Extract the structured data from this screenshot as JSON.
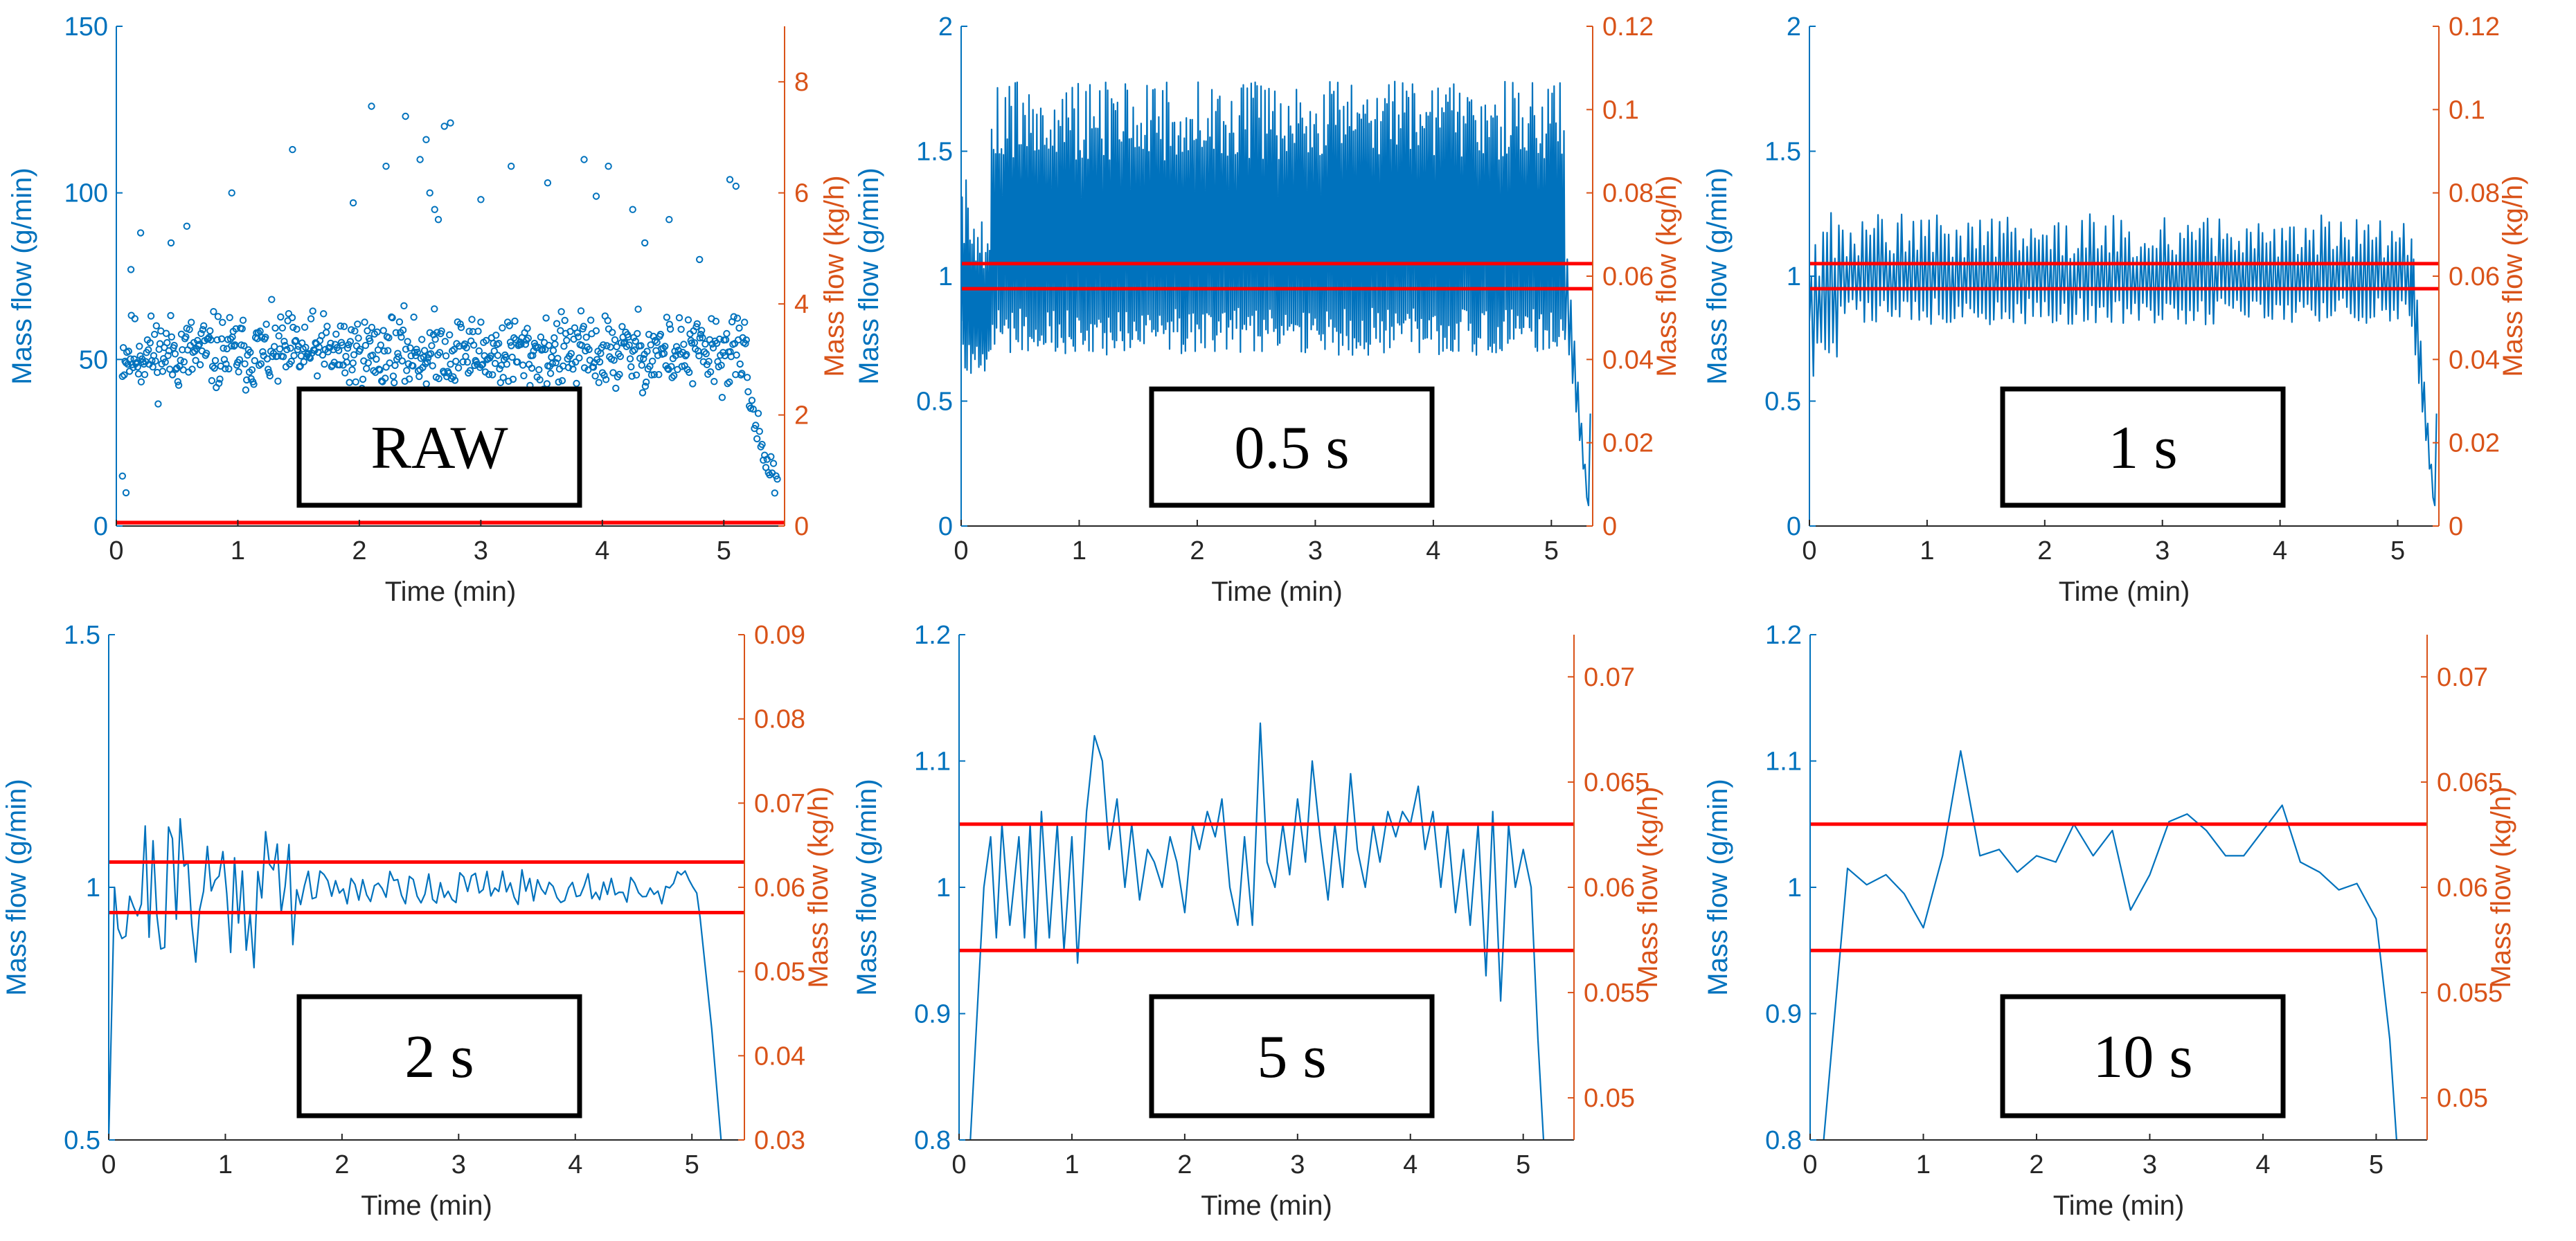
{
  "colors": {
    "left_axis": "#0072BD",
    "right_axis": "#D95319",
    "band": "#FF0000",
    "data": "#0072BD",
    "box": "#000000"
  },
  "chart_data": [
    {
      "type": "scatter",
      "panel_label": "RAW",
      "xlabel": "Time (min)",
      "ylabel_left": "Mass flow (g/min)",
      "ylabel_right": "Mass flow (kg/h)",
      "xlim": [
        0,
        5.5
      ],
      "xticks": [
        0,
        1,
        2,
        3,
        4,
        5
      ],
      "ylim_left": [
        0,
        150
      ],
      "yticks_left": [
        0,
        50,
        100,
        150
      ],
      "ylim_right": [
        0,
        9
      ],
      "yticks_right": [
        0,
        2,
        4,
        6,
        8
      ],
      "band_lines": [
        0.95,
        1.05
      ],
      "series": {
        "generator": {
          "kind": "scatter",
          "mean": 52,
          "spread": 8,
          "n": 700,
          "end_drop": 5.2,
          "seed": 11
        },
        "outliers": [
          [
            0.12,
            77
          ],
          [
            0.2,
            88
          ],
          [
            0.45,
            85
          ],
          [
            0.58,
            90
          ],
          [
            0.95,
            100
          ],
          [
            1.45,
            113
          ],
          [
            1.95,
            97
          ],
          [
            2.1,
            126
          ],
          [
            2.22,
            108
          ],
          [
            2.38,
            123
          ],
          [
            2.5,
            110
          ],
          [
            2.55,
            116
          ],
          [
            2.58,
            100
          ],
          [
            2.62,
            95
          ],
          [
            2.65,
            92
          ],
          [
            2.7,
            120
          ],
          [
            2.75,
            121
          ],
          [
            3.0,
            98
          ],
          [
            3.25,
            108
          ],
          [
            3.55,
            103
          ],
          [
            3.85,
            110
          ],
          [
            3.95,
            99
          ],
          [
            4.05,
            108
          ],
          [
            4.25,
            95
          ],
          [
            4.35,
            85
          ],
          [
            4.55,
            92
          ],
          [
            4.8,
            80
          ],
          [
            5.05,
            104
          ],
          [
            5.1,
            102
          ],
          [
            0.05,
            15
          ],
          [
            0.08,
            10
          ]
        ]
      }
    },
    {
      "type": "line",
      "panel_label": "0.5 s",
      "xlabel": "Time (min)",
      "ylabel_left": "Mass flow (g/min)",
      "ylabel_right": "Mass flow (kg/h)",
      "xlim": [
        0,
        5.35
      ],
      "xticks": [
        0,
        1,
        2,
        3,
        4,
        5
      ],
      "ylim_left": [
        0,
        2
      ],
      "yticks_left": [
        0,
        0.5,
        1,
        1.5,
        2
      ],
      "ylim_right": [
        0,
        0.12
      ],
      "yticks_right": [
        0,
        0.02,
        0.04,
        0.06,
        0.08,
        0.1,
        0.12
      ],
      "band_lines": [
        0.95,
        1.05
      ],
      "series": {
        "generator": {
          "kind": "alternating",
          "step": 0.00833,
          "low": 0.78,
          "high": 1.62,
          "jitter": 0.16,
          "end_drop": 5.12,
          "seed": 5
        }
      }
    },
    {
      "type": "line",
      "panel_label": "1 s",
      "xlabel": "Time (min)",
      "ylabel_left": "Mass flow (g/min)",
      "ylabel_right": "Mass flow (kg/h)",
      "xlim": [
        0,
        5.35
      ],
      "xticks": [
        0,
        1,
        2,
        3,
        4,
        5
      ],
      "ylim_left": [
        0,
        2
      ],
      "yticks_left": [
        0,
        0.5,
        1,
        1.5,
        2
      ],
      "ylim_right": [
        0,
        0.12
      ],
      "yticks_right": [
        0,
        0.02,
        0.04,
        0.06,
        0.08,
        0.1,
        0.12
      ],
      "band_lines": [
        0.95,
        1.05
      ],
      "series": {
        "generator": {
          "kind": "alternating",
          "step": 0.01667,
          "low": 0.86,
          "high": 1.16,
          "jitter": 0.09,
          "end_drop": 5.12,
          "seed": 9
        }
      }
    },
    {
      "type": "line",
      "panel_label": "2 s",
      "xlabel": "Time (min)",
      "ylabel_left": "Mass flow (g/min)",
      "ylabel_right": "Mass flow (kg/h)",
      "xlim": [
        0,
        5.45
      ],
      "xticks": [
        0,
        1,
        2,
        3,
        4,
        5
      ],
      "ylim_left": [
        0.5,
        1.5
      ],
      "yticks_left": [
        0.5,
        1,
        1.5
      ],
      "ylim_right": [
        0.03,
        0.09
      ],
      "yticks_right": [
        0.03,
        0.04,
        0.05,
        0.06,
        0.07,
        0.08,
        0.09
      ],
      "band_lines": [
        0.95,
        1.05
      ],
      "series": {
        "generator": {
          "kind": "random",
          "step": 0.0333,
          "mean": 1.0,
          "amp_early": 0.16,
          "amp_late": 0.035,
          "transition": 1.6,
          "end_drop": 5.05,
          "seed": 21
        }
      }
    },
    {
      "type": "line",
      "panel_label": "5 s",
      "xlabel": "Time (min)",
      "ylabel_left": "Mass flow (g/min)",
      "ylabel_right": "Mass flow (kg/h)",
      "xlim": [
        0,
        5.45
      ],
      "xticks": [
        0,
        1,
        2,
        3,
        4,
        5
      ],
      "ylim_left": [
        0.8,
        1.2
      ],
      "yticks_left": [
        0.8,
        0.9,
        1,
        1.1,
        1.2
      ],
      "ylim_right": [
        0.048,
        0.072
      ],
      "yticks_right": [
        0.05,
        0.055,
        0.06,
        0.065,
        0.07
      ],
      "band_lines": [
        0.95,
        1.05
      ],
      "series": {
        "points": [
          [
            0.1,
            0.8
          ],
          [
            0.22,
            1.0
          ],
          [
            0.28,
            1.04
          ],
          [
            0.33,
            0.96
          ],
          [
            0.38,
            1.05
          ],
          [
            0.45,
            0.97
          ],
          [
            0.53,
            1.04
          ],
          [
            0.58,
            0.96
          ],
          [
            0.63,
            1.05
          ],
          [
            0.68,
            0.95
          ],
          [
            0.73,
            1.06
          ],
          [
            0.8,
            0.96
          ],
          [
            0.87,
            1.05
          ],
          [
            0.93,
            0.95
          ],
          [
            1.0,
            1.04
          ],
          [
            1.05,
            0.94
          ],
          [
            1.13,
            1.06
          ],
          [
            1.2,
            1.12
          ],
          [
            1.27,
            1.1
          ],
          [
            1.33,
            1.03
          ],
          [
            1.4,
            1.07
          ],
          [
            1.47,
            1.0
          ],
          [
            1.53,
            1.05
          ],
          [
            1.6,
            0.99
          ],
          [
            1.67,
            1.03
          ],
          [
            1.73,
            1.02
          ],
          [
            1.8,
            1.0
          ],
          [
            1.87,
            1.04
          ],
          [
            1.93,
            1.02
          ],
          [
            2.0,
            0.98
          ],
          [
            2.07,
            1.05
          ],
          [
            2.13,
            1.03
          ],
          [
            2.2,
            1.06
          ],
          [
            2.27,
            1.04
          ],
          [
            2.33,
            1.07
          ],
          [
            2.4,
            1.0
          ],
          [
            2.47,
            0.97
          ],
          [
            2.53,
            1.04
          ],
          [
            2.6,
            0.97
          ],
          [
            2.67,
            1.13
          ],
          [
            2.73,
            1.02
          ],
          [
            2.8,
            1.0
          ],
          [
            2.87,
            1.05
          ],
          [
            2.93,
            1.01
          ],
          [
            3.0,
            1.07
          ],
          [
            3.07,
            1.02
          ],
          [
            3.13,
            1.1
          ],
          [
            3.2,
            1.04
          ],
          [
            3.27,
            0.99
          ],
          [
            3.33,
            1.05
          ],
          [
            3.4,
            1.0
          ],
          [
            3.47,
            1.09
          ],
          [
            3.53,
            1.03
          ],
          [
            3.6,
            1.0
          ],
          [
            3.67,
            1.05
          ],
          [
            3.73,
            1.02
          ],
          [
            3.8,
            1.06
          ],
          [
            3.87,
            1.04
          ],
          [
            3.93,
            1.06
          ],
          [
            4.0,
            1.05
          ],
          [
            4.07,
            1.08
          ],
          [
            4.13,
            1.03
          ],
          [
            4.2,
            1.06
          ],
          [
            4.27,
            1.0
          ],
          [
            4.33,
            1.05
          ],
          [
            4.4,
            0.98
          ],
          [
            4.47,
            1.03
          ],
          [
            4.53,
            0.97
          ],
          [
            4.6,
            1.05
          ],
          [
            4.67,
            0.93
          ],
          [
            4.73,
            1.06
          ],
          [
            4.8,
            0.91
          ],
          [
            4.87,
            1.05
          ],
          [
            4.93,
            1.0
          ],
          [
            5.0,
            1.03
          ],
          [
            5.07,
            1.0
          ],
          [
            5.13,
            0.88
          ],
          [
            5.18,
            0.8
          ]
        ]
      }
    },
    {
      "type": "line",
      "panel_label": "10 s",
      "xlabel": "Time (min)",
      "ylabel_left": "Mass flow (g/min)",
      "ylabel_right": "Mass flow (kg/h)",
      "xlim": [
        0,
        5.45
      ],
      "xticks": [
        0,
        1,
        2,
        3,
        4,
        5
      ],
      "ylim_left": [
        0.8,
        1.2
      ],
      "yticks_left": [
        0.8,
        0.9,
        1,
        1.1,
        1.2
      ],
      "ylim_right": [
        0.048,
        0.072
      ],
      "yticks_right": [
        0.05,
        0.055,
        0.06,
        0.065,
        0.07
      ],
      "band_lines": [
        0.95,
        1.05
      ],
      "series": {
        "points": [
          [
            0.12,
            0.8
          ],
          [
            0.33,
            1.015
          ],
          [
            0.5,
            1.002
          ],
          [
            0.67,
            1.01
          ],
          [
            0.83,
            0.995
          ],
          [
            1.0,
            0.968
          ],
          [
            1.17,
            1.025
          ],
          [
            1.33,
            1.108
          ],
          [
            1.5,
            1.025
          ],
          [
            1.67,
            1.03
          ],
          [
            1.83,
            1.012
          ],
          [
            2.0,
            1.025
          ],
          [
            2.17,
            1.02
          ],
          [
            2.33,
            1.05
          ],
          [
            2.5,
            1.025
          ],
          [
            2.67,
            1.045
          ],
          [
            2.83,
            0.982
          ],
          [
            3.0,
            1.01
          ],
          [
            3.17,
            1.052
          ],
          [
            3.33,
            1.058
          ],
          [
            3.5,
            1.045
          ],
          [
            3.67,
            1.025
          ],
          [
            3.83,
            1.025
          ],
          [
            4.0,
            1.045
          ],
          [
            4.17,
            1.065
          ],
          [
            4.33,
            1.02
          ],
          [
            4.5,
            1.012
          ],
          [
            4.67,
            0.998
          ],
          [
            4.83,
            1.003
          ],
          [
            5.0,
            0.975
          ],
          [
            5.12,
            0.88
          ],
          [
            5.18,
            0.8
          ]
        ]
      }
    }
  ]
}
